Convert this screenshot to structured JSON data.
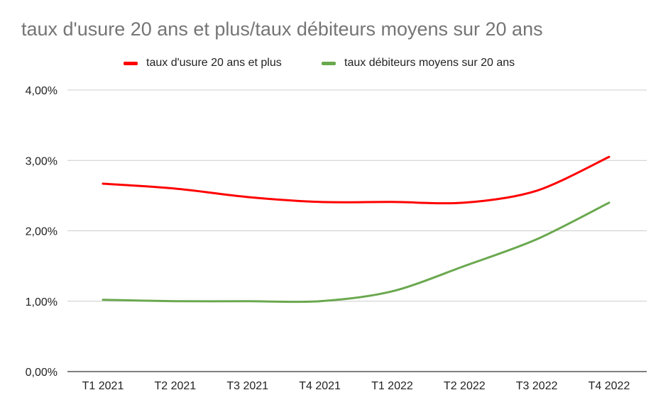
{
  "chart_data": {
    "type": "line",
    "title": "taux d'usure 20 ans et plus/taux débiteurs moyens sur 20 ans",
    "categories": [
      "T1 2021",
      "T2 2021",
      "T3 2021",
      "T4 2021",
      "T1 2022",
      "T2 2022",
      "T3 2022",
      "T4 2022"
    ],
    "series": [
      {
        "name": "taux d'usure 20 ans et plus",
        "color": "#ff0000",
        "values": [
          2.67,
          2.6,
          2.48,
          2.41,
          2.41,
          2.4,
          2.57,
          3.05
        ]
      },
      {
        "name": "taux débiteurs moyens sur 20 ans",
        "color": "#6aa84f",
        "values": [
          1.02,
          1.0,
          1.0,
          1.0,
          1.14,
          1.5,
          1.88,
          2.4
        ]
      }
    ],
    "yticks": [
      "0,00%",
      "1,00%",
      "2,00%",
      "3,00%",
      "4,00%"
    ],
    "ylim": [
      0,
      4
    ],
    "grid": true,
    "legend_position": "top"
  }
}
